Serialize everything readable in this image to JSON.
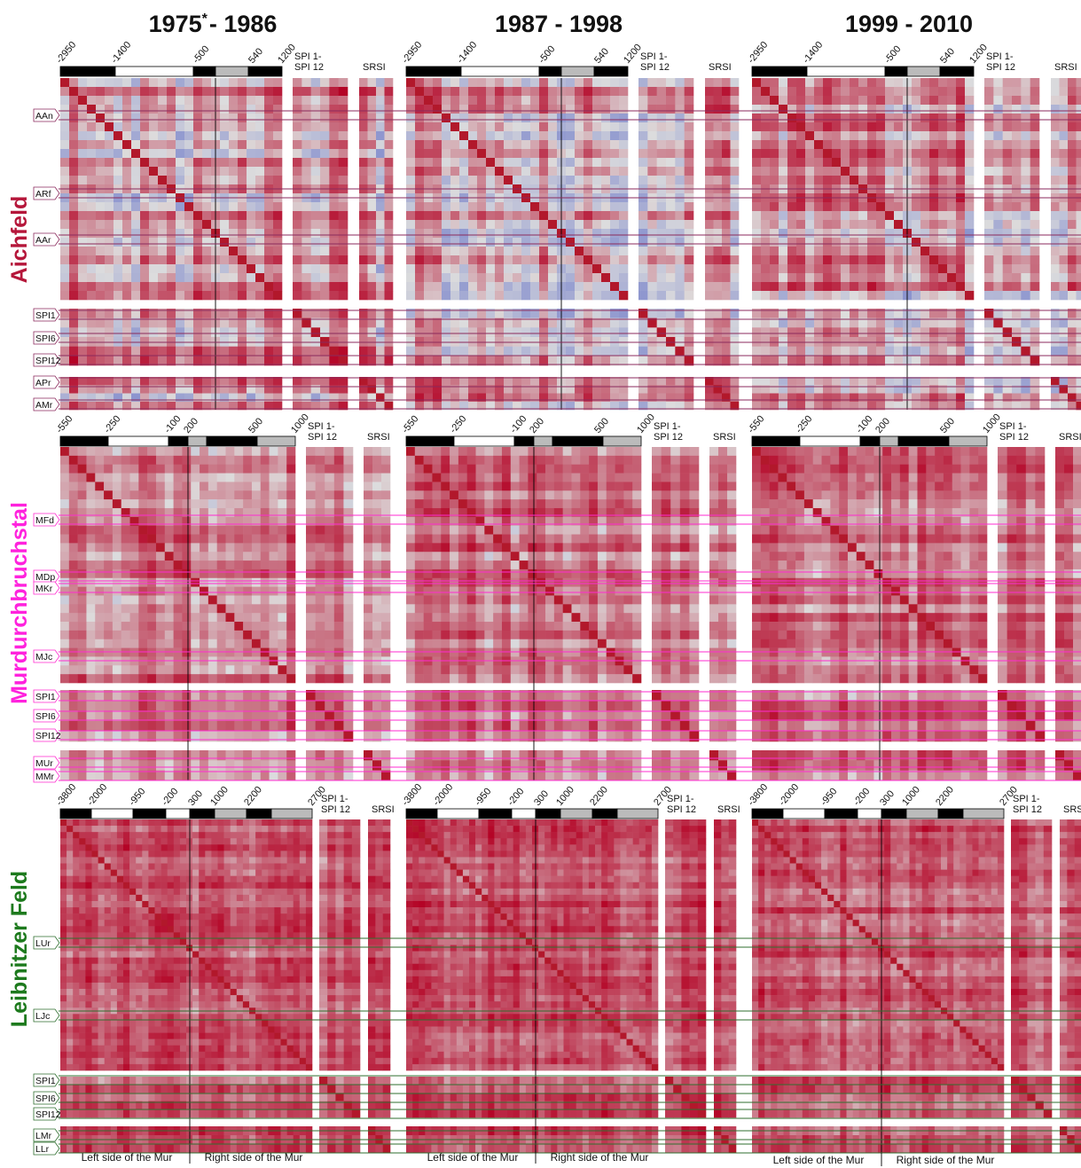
{
  "columns": [
    {
      "label": "1975",
      "superscript": "*",
      "suffix": "- 1986"
    },
    {
      "label": "1987 - 1998"
    },
    {
      "label": "1999 - 2010"
    }
  ],
  "regions": [
    {
      "name": "Aichfeld",
      "ticks": [
        "-2950",
        "-1400",
        "-500",
        "540",
        "1200"
      ],
      "spi_header": [
        "SPI 1-",
        "SPI 12"
      ],
      "srsi_header": "SRSI",
      "stations": [
        "AAn",
        "ARf",
        "AAr"
      ],
      "spi_rows": [
        "SPI1",
        "SPI6",
        "SPI12"
      ],
      "srsi_rows": [
        "APr",
        "AMr"
      ]
    },
    {
      "name": "Murdurchbruchstal",
      "ticks": [
        "-550",
        "-250",
        "-100",
        "200",
        "500",
        "1000"
      ],
      "spi_header": [
        "SPI 1-",
        "SPI 12"
      ],
      "srsi_header": "SRSI",
      "stations": [
        "MFd",
        "MDp",
        "MKr",
        "MJc"
      ],
      "spi_rows": [
        "SPI1",
        "SPI6",
        "SPI12"
      ],
      "srsi_rows": [
        "MUr",
        "MMr"
      ]
    },
    {
      "name": "Leibnitzer Feld",
      "ticks": [
        "-3800",
        "-2000",
        "-950",
        "-200",
        "300",
        "1000",
        "2200",
        "2700"
      ],
      "spi_header": [
        "SPI 1-",
        "SPI 12"
      ],
      "srsi_header": "SRSI",
      "stations": [
        "LUr",
        "LJc"
      ],
      "spi_rows": [
        "SPI1",
        "SPI6",
        "SPI12"
      ],
      "srsi_rows": [
        "LMr",
        "LLr"
      ]
    }
  ],
  "footer": [
    "Left side of the Mur",
    "Right side of the Mur"
  ]
}
